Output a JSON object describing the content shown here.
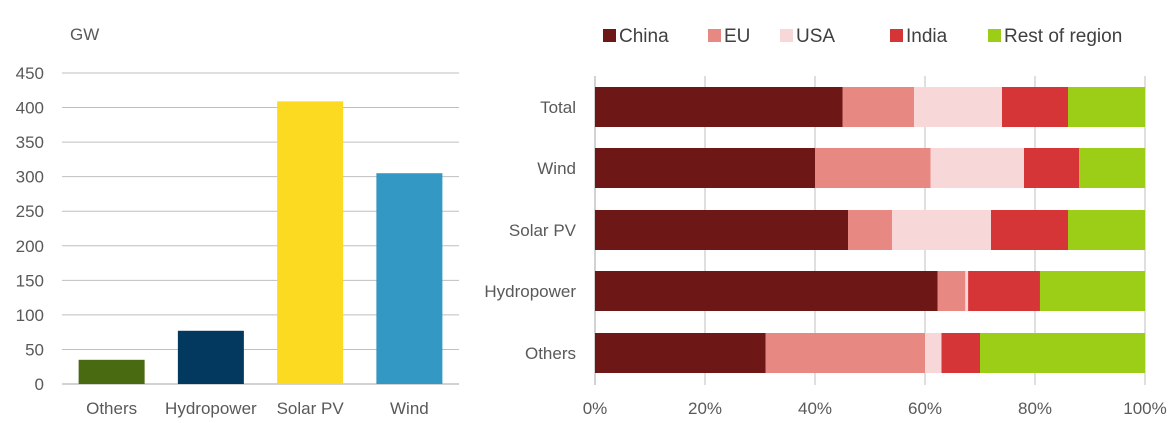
{
  "chart_data": [
    {
      "type": "bar",
      "unit_label": "GW",
      "categories": [
        "Others",
        "Hydropower",
        "Solar PV",
        "Wind"
      ],
      "values": [
        35,
        77,
        409,
        305
      ],
      "colors": [
        "#4a6a12",
        "#03395e",
        "#fcda22",
        "#3399c4"
      ],
      "ylim": [
        0,
        450
      ],
      "yticks": [
        "0",
        "50",
        "100",
        "150",
        "200",
        "250",
        "300",
        "350",
        "400",
        "450"
      ],
      "grid": true
    },
    {
      "type": "bar",
      "orientation": "horizontal",
      "stacked": true,
      "percent": true,
      "categories": [
        "Total",
        "Wind",
        "Solar PV",
        "Hydropower",
        "Others"
      ],
      "series": [
        {
          "name": "China",
          "color": "#6d1717",
          "values": [
            45,
            40,
            46,
            62,
            31
          ]
        },
        {
          "name": "EU",
          "color": "#e78883",
          "values": [
            13,
            21,
            8,
            5,
            29
          ]
        },
        {
          "name": "USA",
          "color": "#f7d7d7",
          "values": [
            16,
            17,
            18,
            0.5,
            3
          ]
        },
        {
          "name": "India",
          "color": "#d63538",
          "values": [
            12,
            10,
            14,
            13,
            7
          ]
        },
        {
          "name": "Rest of region",
          "color": "#9ccd17",
          "values": [
            14,
            12,
            14,
            19,
            30
          ]
        }
      ],
      "xlim": [
        0,
        100
      ],
      "xticks": [
        "0%",
        "20%",
        "40%",
        "60%",
        "80%",
        "100%"
      ],
      "legend_position": "top",
      "grid": true
    }
  ]
}
